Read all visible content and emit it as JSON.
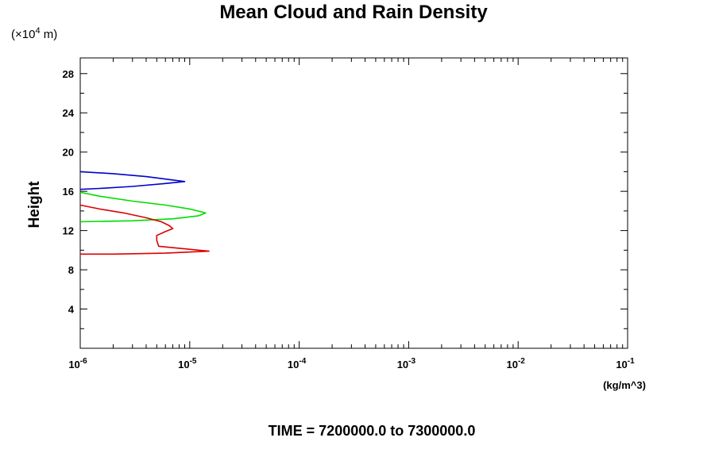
{
  "chart_data": {
    "type": "line",
    "title": "Mean Cloud and Rain Density",
    "ylabel": "Height",
    "y_scale_label": "(×10",
    "y_scale_exp": "4",
    "y_scale_unit": " m)",
    "x_unit": "(kg/m^3)",
    "x_scale": "log",
    "xlim": [
      1e-06,
      0.1
    ],
    "ylim": [
      0,
      29.6
    ],
    "y_ticks": [
      4,
      8,
      12,
      16,
      20,
      24,
      28
    ],
    "x_ticks": [
      {
        "base": "10",
        "exp": "-6",
        "value": 1e-06
      },
      {
        "base": "10",
        "exp": "-5",
        "value": 1e-05
      },
      {
        "base": "10",
        "exp": "-4",
        "value": 0.0001
      },
      {
        "base": "10",
        "exp": "-3",
        "value": 0.001
      },
      {
        "base": "10",
        "exp": "-2",
        "value": 0.01
      },
      {
        "base": "10",
        "exp": "-1",
        "value": 0.1
      }
    ],
    "grid": false,
    "series": [
      {
        "color": "#0000cc",
        "points": [
          [
            1e-06,
            18.0
          ],
          [
            2e-06,
            17.8
          ],
          [
            4e-06,
            17.5
          ],
          [
            6.5e-06,
            17.2
          ],
          [
            9e-06,
            17.0
          ],
          [
            6e-06,
            16.8
          ],
          [
            3e-06,
            16.5
          ],
          [
            1.5e-06,
            16.3
          ],
          [
            1e-06,
            16.2
          ]
        ]
      },
      {
        "color": "#00dd00",
        "points": [
          [
            1e-06,
            15.9
          ],
          [
            1.5e-06,
            15.5
          ],
          [
            3e-06,
            15.0
          ],
          [
            6e-06,
            14.6
          ],
          [
            1e-05,
            14.2
          ],
          [
            1.4e-05,
            13.8
          ],
          [
            1.2e-05,
            13.5
          ],
          [
            7e-06,
            13.2
          ],
          [
            3e-06,
            13.0
          ],
          [
            1e-06,
            12.9
          ]
        ]
      },
      {
        "color": "#dd0000",
        "points": [
          [
            1e-06,
            14.6
          ],
          [
            1.5e-06,
            14.2
          ],
          [
            2.5e-06,
            13.8
          ],
          [
            4e-06,
            13.3
          ],
          [
            5.5e-06,
            12.9
          ],
          [
            6.5e-06,
            12.5
          ],
          [
            7e-06,
            12.2
          ],
          [
            6e-06,
            11.9
          ],
          [
            5e-06,
            11.5
          ],
          [
            5e-06,
            11.0
          ],
          [
            5.2e-06,
            10.4
          ],
          [
            8e-06,
            10.2
          ],
          [
            1.5e-05,
            9.9
          ],
          [
            6e-06,
            9.7
          ],
          [
            2e-06,
            9.6
          ],
          [
            1e-06,
            9.6
          ]
        ]
      }
    ]
  },
  "footer": {
    "time_text": "TIME = 7200000.0 to 7300000.0"
  }
}
